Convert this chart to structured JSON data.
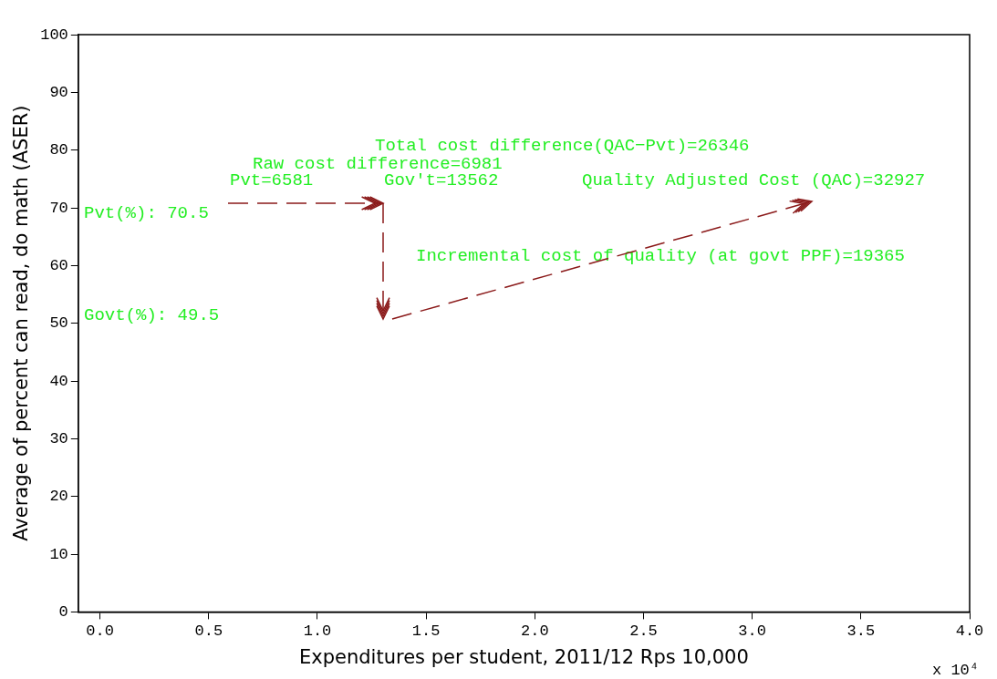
{
  "chart_data": {
    "type": "line",
    "xlabel": "Expenditures per student, 2011/12 Rps 10,000",
    "ylabel": "Average of percent can read, do math (ASER)",
    "xlim": [
      -0.1,
      4.0
    ],
    "xticks": [
      {
        "value": 0,
        "label": "0.0"
      },
      0.5,
      {
        "value": 1,
        "label": "1.0"
      },
      1.5,
      {
        "value": 2,
        "label": "2.0"
      },
      2.5,
      {
        "value": 3,
        "label": "3.0"
      },
      3.5,
      {
        "value": 4,
        "label": "4.0"
      }
    ],
    "ylim": [
      0,
      100
    ],
    "yticks": [
      0,
      10,
      20,
      30,
      40,
      50,
      60,
      70,
      80,
      90,
      100
    ],
    "grid": false,
    "legend": false,
    "annotations": [
      "Total cost difference(QAC−Pvt)=26346",
      "Raw cost difference=6981",
      "Pvt=6581",
      "Gov't=13562",
      "Quality Adjusted Cost (QAC)=32927",
      "Pvt(%): 70.5",
      "Incremental cost of quality (at govt PPF)=19365",
      "Govt(%): 49.5",
      "x 10⁴"
    ]
  }
}
